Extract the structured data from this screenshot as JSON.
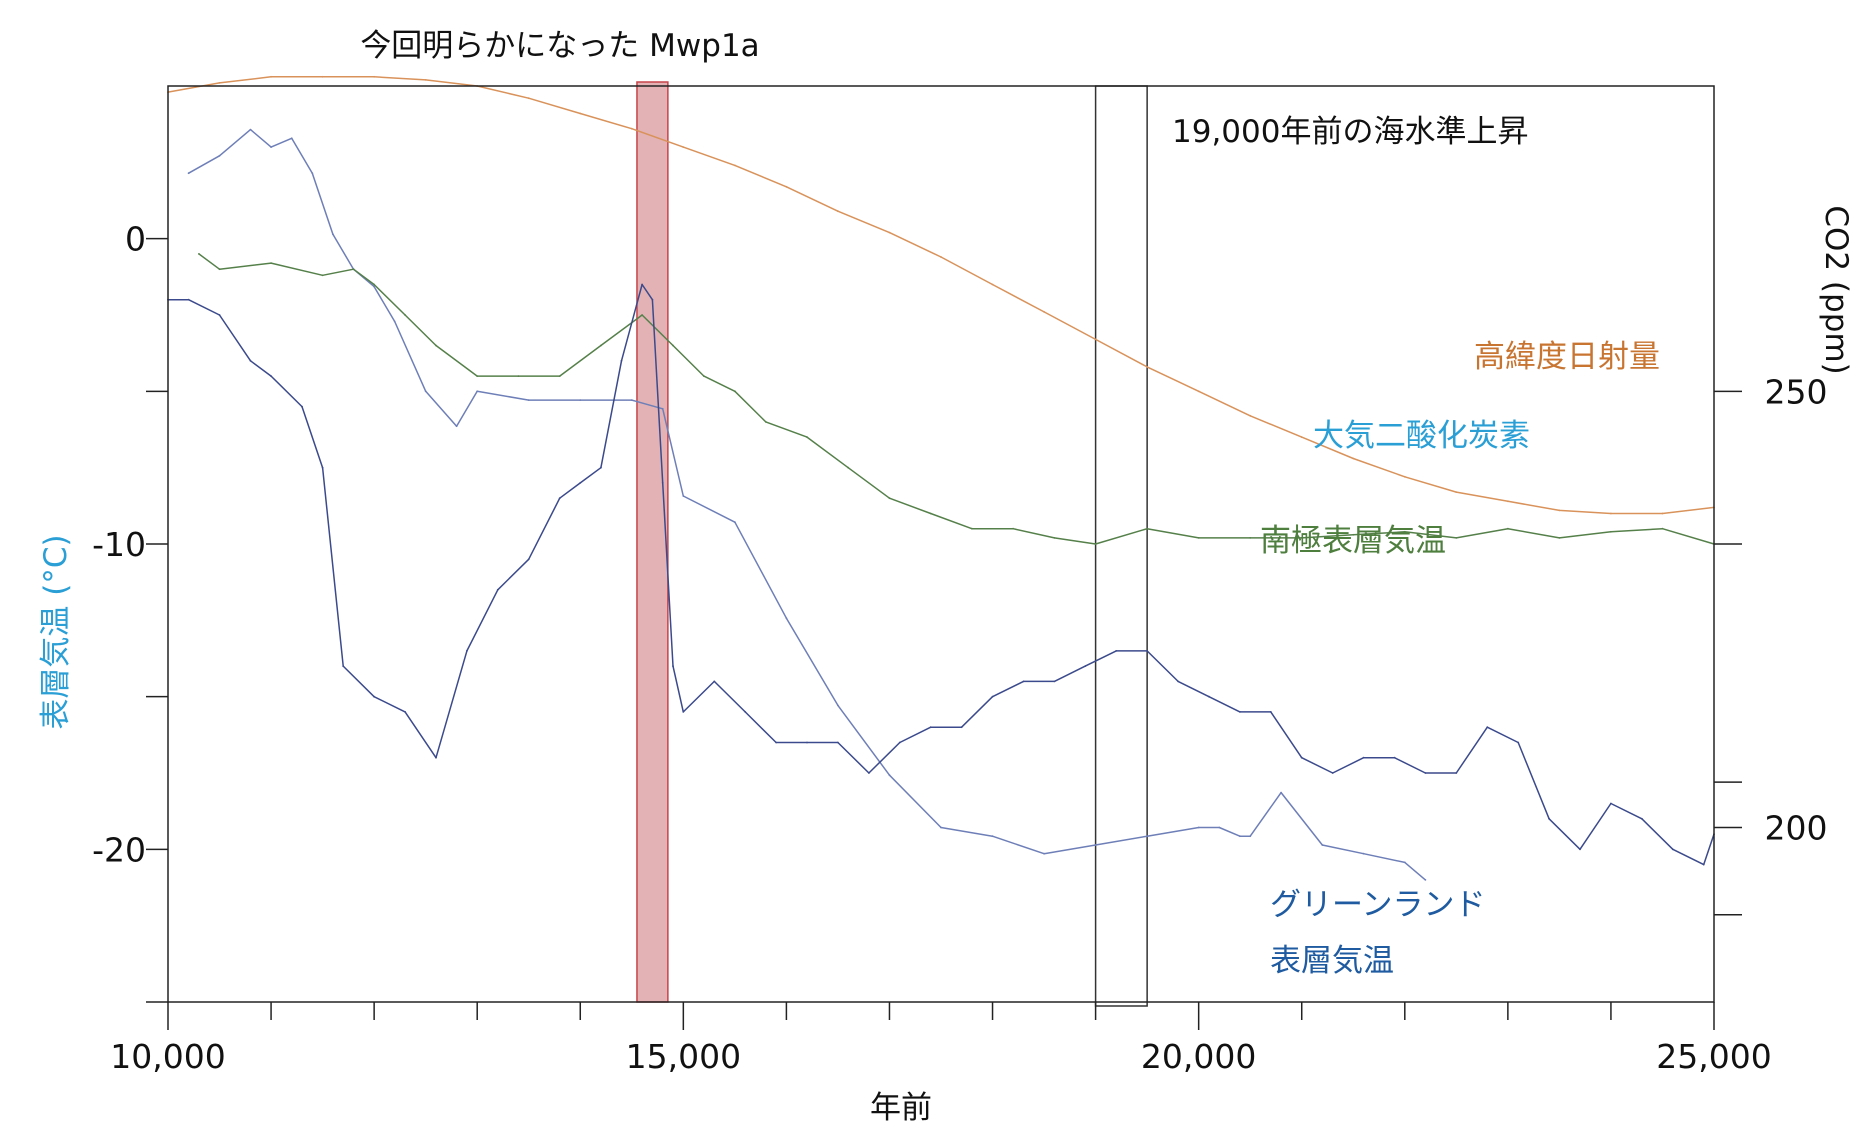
{
  "chart_data": {
    "type": "line",
    "title": "",
    "xlabel": "年前",
    "ylabel_left": "表層気温 (°C)",
    "ylabel_right": "CO2 (ppm)",
    "x_range": [
      10000,
      25000
    ],
    "y_left_range": [
      -25,
      5
    ],
    "y_right_range": [
      180,
      285
    ],
    "x_ticks": [
      {
        "value": 10000,
        "label": "10,000"
      },
      {
        "value": 15000,
        "label": "15,000"
      },
      {
        "value": 20000,
        "label": "20,000"
      },
      {
        "value": 25000,
        "label": "25,000"
      }
    ],
    "y_left_ticks": [
      {
        "value": 0,
        "label": "0"
      },
      {
        "value": -10,
        "label": "-10"
      },
      {
        "value": -20,
        "label": "-20"
      }
    ],
    "y_right_ticks": [
      {
        "value": 250,
        "label": "250"
      },
      {
        "value": 200,
        "label": "200"
      }
    ],
    "highlight_band": {
      "label": "今回明らかになった Mwp1a",
      "x_range": [
        14550,
        14850
      ],
      "color": "#e2b2b5"
    },
    "box_region": {
      "label": "19,000年前の海水準上昇",
      "x_range": [
        19000,
        19500
      ]
    },
    "series": [
      {
        "name": "高緯度日射量",
        "color": "#d9925a",
        "label_color": "#c87532",
        "axis": "left",
        "x": [
          10000,
          10500,
          11000,
          11500,
          12000,
          12500,
          13000,
          13500,
          14000,
          14500,
          15000,
          15500,
          16000,
          16500,
          17000,
          17500,
          18000,
          18500,
          19000,
          19500,
          20000,
          20500,
          21000,
          21500,
          22000,
          22500,
          23000,
          23500,
          24000,
          24500,
          25000
        ],
        "y": [
          4.8,
          5.1,
          5.3,
          5.3,
          5.3,
          5.2,
          5.0,
          4.6,
          4.1,
          3.6,
          3.0,
          2.4,
          1.7,
          0.9,
          0.2,
          -0.6,
          -1.5,
          -2.4,
          -3.3,
          -4.2,
          -5.0,
          -5.8,
          -6.5,
          -7.2,
          -7.8,
          -8.3,
          -8.6,
          -8.9,
          -9.0,
          -9.0,
          -8.8
        ]
      },
      {
        "name": "大気二酸化炭素",
        "color": "#6e7fb8",
        "label_color": "#2a9fd6",
        "axis": "right",
        "x": [
          10200,
          10500,
          10800,
          11000,
          11200,
          11400,
          11600,
          11800,
          12000,
          12200,
          12500,
          12800,
          13000,
          13500,
          14000,
          14500,
          14800,
          15000,
          15500,
          16000,
          16500,
          17000,
          17500,
          18000,
          18500,
          19000,
          19500,
          20000,
          20200,
          20400,
          20500,
          20800,
          21200,
          21600,
          22000,
          22200
        ],
        "y": [
          275,
          277,
          280,
          278,
          279,
          275,
          268,
          264,
          262,
          258,
          250,
          246,
          250,
          249,
          249,
          249,
          248,
          238,
          235,
          224,
          214,
          206,
          200,
          199,
          197,
          198,
          199,
          200,
          200,
          199,
          199,
          204,
          198,
          197,
          196,
          194
        ]
      },
      {
        "name": "南極表層気温",
        "color": "#55804a",
        "label_color": "#4e7f3f",
        "axis": "left",
        "x": [
          10300,
          10500,
          11000,
          11500,
          11800,
          12000,
          12300,
          12600,
          13000,
          13400,
          13800,
          14200,
          14600,
          14900,
          15200,
          15500,
          15800,
          16200,
          16600,
          17000,
          17400,
          17800,
          18200,
          18600,
          19000,
          19500,
          20000,
          20500,
          21000,
          21500,
          22000,
          22500,
          23000,
          23500,
          24000,
          24500,
          25000
        ],
        "y": [
          -0.5,
          -1.0,
          -0.8,
          -1.2,
          -1.0,
          -1.5,
          -2.5,
          -3.5,
          -4.5,
          -4.5,
          -4.5,
          -3.5,
          -2.5,
          -3.5,
          -4.5,
          -5.0,
          -6.0,
          -6.5,
          -7.5,
          -8.5,
          -9.0,
          -9.5,
          -9.5,
          -9.8,
          -10.0,
          -9.5,
          -9.8,
          -9.8,
          -9.8,
          -9.7,
          -9.6,
          -9.8,
          -9.5,
          -9.8,
          -9.6,
          -9.5,
          -10.0
        ]
      },
      {
        "name": "グリーンランド 表層気温",
        "color": "#3b4a8c",
        "label_color": "#1f5ba0",
        "axis": "left",
        "x": [
          10000,
          10200,
          10500,
          10800,
          11000,
          11300,
          11500,
          11700,
          12000,
          12300,
          12600,
          12900,
          13200,
          13500,
          13800,
          14000,
          14200,
          14400,
          14600,
          14700,
          14800,
          14900,
          15000,
          15300,
          15600,
          15900,
          16200,
          16500,
          16800,
          17100,
          17400,
          17700,
          18000,
          18300,
          18600,
          18900,
          19200,
          19500,
          19800,
          20100,
          20400,
          20700,
          21000,
          21300,
          21600,
          21900,
          22200,
          22500,
          22800,
          23100,
          23400,
          23700,
          24000,
          24300,
          24600,
          24900,
          25000
        ],
        "y": [
          -2.0,
          -2.0,
          -2.5,
          -4.0,
          -4.5,
          -5.5,
          -7.5,
          -14.0,
          -15.0,
          -15.5,
          -17.0,
          -13.5,
          -11.5,
          -10.5,
          -8.5,
          -8.0,
          -7.5,
          -4.0,
          -1.5,
          -2.0,
          -8.0,
          -14.0,
          -15.5,
          -14.5,
          -15.5,
          -16.5,
          -16.5,
          -16.5,
          -17.5,
          -16.5,
          -16.0,
          -16.0,
          -15.0,
          -14.5,
          -14.5,
          -14.0,
          -13.5,
          -13.5,
          -14.5,
          -15.0,
          -15.5,
          -15.5,
          -17.0,
          -17.5,
          -17.0,
          -17.0,
          -17.5,
          -17.5,
          -16.0,
          -16.5,
          -19.0,
          -20.0,
          -18.5,
          -19.0,
          -20.0,
          -20.5,
          -19.5
        ]
      }
    ]
  }
}
